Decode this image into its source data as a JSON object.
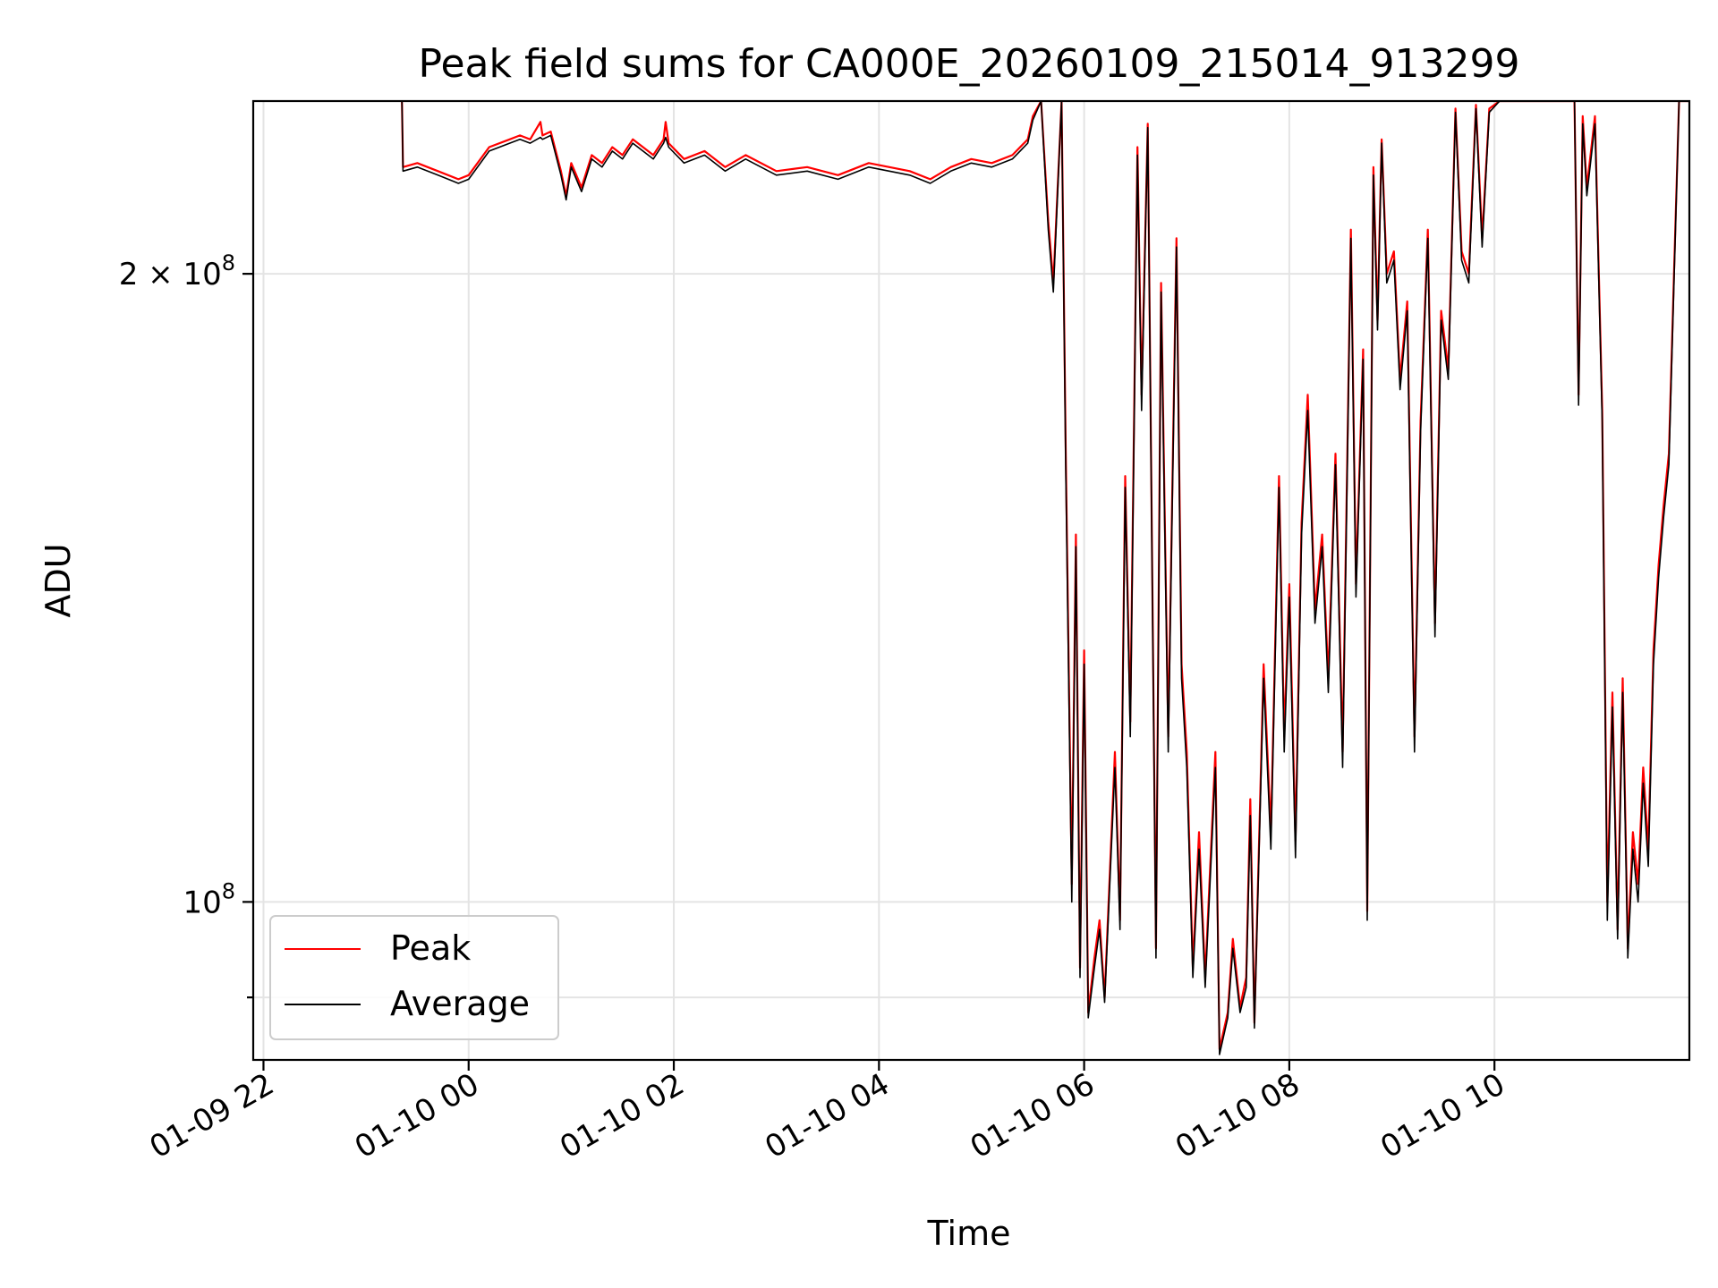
{
  "chart_data": {
    "type": "line",
    "title": "Peak field sums for CA000E_20260109_215014_913299",
    "xlabel": "Time",
    "ylabel": "ADU",
    "x_unit": "hours since 01-09 22:00",
    "xlim": [
      -0.1,
      13.9
    ],
    "y_scale": "log",
    "ylim": [
      84000000,
      242000000
    ],
    "grid": true,
    "legend_location": "lower-left",
    "x_ticks": [
      {
        "value": 0,
        "label": "01-09 22"
      },
      {
        "value": 2,
        "label": "01-10 00"
      },
      {
        "value": 4,
        "label": "01-10 02"
      },
      {
        "value": 6,
        "label": "01-10 04"
      },
      {
        "value": 8,
        "label": "01-10 06"
      },
      {
        "value": 10,
        "label": "01-10 08"
      },
      {
        "value": 12,
        "label": "01-10 10"
      }
    ],
    "y_major_ticks": [
      {
        "value": 100000000,
        "base": "10",
        "exp": "8",
        "coef": ""
      },
      {
        "value": 200000000,
        "base": "10",
        "exp": "8",
        "coef": "2 × "
      }
    ],
    "y_minor_ticks": [
      90000000
    ],
    "series": [
      {
        "name": "Peak",
        "color": "#ff0000",
        "points": [
          [
            1.35,
            242000000
          ],
          [
            1.36,
            225000000
          ],
          [
            1.5,
            226000000
          ],
          [
            1.7,
            224000000
          ],
          [
            1.9,
            222000000
          ],
          [
            2.0,
            223000000
          ],
          [
            2.2,
            230000000
          ],
          [
            2.4,
            232000000
          ],
          [
            2.5,
            233000000
          ],
          [
            2.6,
            232000000
          ],
          [
            2.7,
            236500000
          ],
          [
            2.72,
            233000000
          ],
          [
            2.8,
            234000000
          ],
          [
            2.9,
            224000000
          ],
          [
            2.95,
            218000000
          ],
          [
            3.0,
            226000000
          ],
          [
            3.1,
            220000000
          ],
          [
            3.2,
            228000000
          ],
          [
            3.3,
            226000000
          ],
          [
            3.4,
            230000000
          ],
          [
            3.5,
            228000000
          ],
          [
            3.6,
            232000000
          ],
          [
            3.7,
            230000000
          ],
          [
            3.8,
            228000000
          ],
          [
            3.9,
            232000000
          ],
          [
            3.92,
            236500000
          ],
          [
            3.95,
            231000000
          ],
          [
            4.1,
            227000000
          ],
          [
            4.3,
            229000000
          ],
          [
            4.5,
            225000000
          ],
          [
            4.7,
            228000000
          ],
          [
            5.0,
            224000000
          ],
          [
            5.3,
            225000000
          ],
          [
            5.6,
            223000000
          ],
          [
            5.9,
            226000000
          ],
          [
            6.1,
            225000000
          ],
          [
            6.3,
            224000000
          ],
          [
            6.5,
            222000000
          ],
          [
            6.7,
            225000000
          ],
          [
            6.9,
            227000000
          ],
          [
            7.1,
            226000000
          ],
          [
            7.3,
            228000000
          ],
          [
            7.45,
            232000000
          ],
          [
            7.5,
            238000000
          ],
          [
            7.58,
            242000000
          ],
          [
            7.65,
            212000000
          ],
          [
            7.7,
            198000000
          ],
          [
            7.78,
            242000000
          ],
          [
            7.82,
            165000000
          ],
          [
            7.88,
            102000000
          ],
          [
            7.92,
            150000000
          ],
          [
            7.96,
            93000000
          ],
          [
            8.0,
            132000000
          ],
          [
            8.04,
            88500000
          ],
          [
            8.1,
            94000000
          ],
          [
            8.15,
            98000000
          ],
          [
            8.2,
            90000000
          ],
          [
            8.3,
            118000000
          ],
          [
            8.35,
            98000000
          ],
          [
            8.4,
            160000000
          ],
          [
            8.45,
            122000000
          ],
          [
            8.52,
            230000000
          ],
          [
            8.56,
            175000000
          ],
          [
            8.62,
            236000000
          ],
          [
            8.7,
            95000000
          ],
          [
            8.75,
            198000000
          ],
          [
            8.82,
            120000000
          ],
          [
            8.9,
            208000000
          ],
          [
            8.95,
            130000000
          ],
          [
            9.0,
            118000000
          ],
          [
            9.06,
            93000000
          ],
          [
            9.12,
            108000000
          ],
          [
            9.18,
            92000000
          ],
          [
            9.28,
            118000000
          ],
          [
            9.32,
            85000000
          ],
          [
            9.4,
            88500000
          ],
          [
            9.45,
            96000000
          ],
          [
            9.52,
            89000000
          ],
          [
            9.58,
            92000000
          ],
          [
            9.62,
            112000000
          ],
          [
            9.66,
            87500000
          ],
          [
            9.75,
            130000000
          ],
          [
            9.82,
            108000000
          ],
          [
            9.9,
            160000000
          ],
          [
            9.95,
            120000000
          ],
          [
            10.0,
            142000000
          ],
          [
            10.06,
            107000000
          ],
          [
            10.12,
            152000000
          ],
          [
            10.18,
            175000000
          ],
          [
            10.25,
            138000000
          ],
          [
            10.32,
            150000000
          ],
          [
            10.38,
            128000000
          ],
          [
            10.45,
            164000000
          ],
          [
            10.52,
            118000000
          ],
          [
            10.6,
            210000000
          ],
          [
            10.65,
            142000000
          ],
          [
            10.72,
            184000000
          ],
          [
            10.76,
            99000000
          ],
          [
            10.82,
            225000000
          ],
          [
            10.86,
            190000000
          ],
          [
            10.9,
            232000000
          ],
          [
            10.95,
            200000000
          ],
          [
            11.02,
            205000000
          ],
          [
            11.08,
            178000000
          ],
          [
            11.15,
            194000000
          ],
          [
            11.22,
            120000000
          ],
          [
            11.28,
            170000000
          ],
          [
            11.35,
            210000000
          ],
          [
            11.42,
            136000000
          ],
          [
            11.48,
            192000000
          ],
          [
            11.55,
            180000000
          ],
          [
            11.62,
            240000000
          ],
          [
            11.68,
            205000000
          ],
          [
            11.75,
            200000000
          ],
          [
            11.82,
            241000000
          ],
          [
            11.88,
            208000000
          ],
          [
            11.95,
            240000000
          ],
          [
            12.05,
            242000000
          ],
          [
            12.2,
            242000000
          ],
          [
            12.4,
            242000000
          ],
          [
            12.6,
            242000000
          ],
          [
            12.78,
            242000000
          ],
          [
            12.82,
            175000000
          ],
          [
            12.86,
            238000000
          ],
          [
            12.9,
            220000000
          ],
          [
            12.98,
            238000000
          ],
          [
            13.05,
            172000000
          ],
          [
            13.1,
            100000000
          ],
          [
            13.15,
            126000000
          ],
          [
            13.2,
            97000000
          ],
          [
            13.25,
            128000000
          ],
          [
            13.3,
            95000000
          ],
          [
            13.35,
            108000000
          ],
          [
            13.4,
            102000000
          ],
          [
            13.45,
            116000000
          ],
          [
            13.5,
            106000000
          ],
          [
            13.55,
            132000000
          ],
          [
            13.6,
            145000000
          ],
          [
            13.65,
            155000000
          ],
          [
            13.7,
            164000000
          ],
          [
            13.75,
            200000000
          ],
          [
            13.8,
            242000000
          ],
          [
            13.9,
            242000000
          ]
        ]
      },
      {
        "name": "Average",
        "color": "#000000",
        "points": [
          [
            1.35,
            242000000
          ],
          [
            1.36,
            224000000
          ],
          [
            1.5,
            225000000
          ],
          [
            1.7,
            223000000
          ],
          [
            1.9,
            221000000
          ],
          [
            2.0,
            222000000
          ],
          [
            2.2,
            229000000
          ],
          [
            2.4,
            231000000
          ],
          [
            2.5,
            232000000
          ],
          [
            2.6,
            231000000
          ],
          [
            2.7,
            232500000
          ],
          [
            2.72,
            232000000
          ],
          [
            2.8,
            233000000
          ],
          [
            2.9,
            223000000
          ],
          [
            2.95,
            217000000
          ],
          [
            3.0,
            225000000
          ],
          [
            3.1,
            219000000
          ],
          [
            3.2,
            227000000
          ],
          [
            3.3,
            225000000
          ],
          [
            3.4,
            229000000
          ],
          [
            3.5,
            227000000
          ],
          [
            3.6,
            231000000
          ],
          [
            3.7,
            229000000
          ],
          [
            3.8,
            227000000
          ],
          [
            3.9,
            231000000
          ],
          [
            3.92,
            232500000
          ],
          [
            3.95,
            230000000
          ],
          [
            4.1,
            226000000
          ],
          [
            4.3,
            228000000
          ],
          [
            4.5,
            224000000
          ],
          [
            4.7,
            227000000
          ],
          [
            5.0,
            223000000
          ],
          [
            5.3,
            224000000
          ],
          [
            5.6,
            222000000
          ],
          [
            5.9,
            225000000
          ],
          [
            6.1,
            224000000
          ],
          [
            6.3,
            223000000
          ],
          [
            6.5,
            221000000
          ],
          [
            6.7,
            224000000
          ],
          [
            6.9,
            226000000
          ],
          [
            7.1,
            225000000
          ],
          [
            7.3,
            227000000
          ],
          [
            7.45,
            231000000
          ],
          [
            7.5,
            237000000
          ],
          [
            7.58,
            242000000
          ],
          [
            7.65,
            210000000
          ],
          [
            7.7,
            196000000
          ],
          [
            7.78,
            242000000
          ],
          [
            7.82,
            162000000
          ],
          [
            7.88,
            100000000
          ],
          [
            7.92,
            148000000
          ],
          [
            7.96,
            92000000
          ],
          [
            8.0,
            130000000
          ],
          [
            8.04,
            88000000
          ],
          [
            8.1,
            93000000
          ],
          [
            8.15,
            97000000
          ],
          [
            8.2,
            89500000
          ],
          [
            8.3,
            116000000
          ],
          [
            8.35,
            97000000
          ],
          [
            8.4,
            158000000
          ],
          [
            8.45,
            120000000
          ],
          [
            8.52,
            228000000
          ],
          [
            8.56,
            172000000
          ],
          [
            8.62,
            235000000
          ],
          [
            8.7,
            94000000
          ],
          [
            8.75,
            196000000
          ],
          [
            8.82,
            118000000
          ],
          [
            8.9,
            206000000
          ],
          [
            8.95,
            128000000
          ],
          [
            9.0,
            116000000
          ],
          [
            9.06,
            92000000
          ],
          [
            9.12,
            106000000
          ],
          [
            9.18,
            91000000
          ],
          [
            9.28,
            116000000
          ],
          [
            9.32,
            84500000
          ],
          [
            9.4,
            88000000
          ],
          [
            9.45,
            95000000
          ],
          [
            9.52,
            88500000
          ],
          [
            9.58,
            91000000
          ],
          [
            9.62,
            110000000
          ],
          [
            9.66,
            87000000
          ],
          [
            9.75,
            128000000
          ],
          [
            9.82,
            106000000
          ],
          [
            9.9,
            158000000
          ],
          [
            9.95,
            118000000
          ],
          [
            10.0,
            140000000
          ],
          [
            10.06,
            105000000
          ],
          [
            10.12,
            150000000
          ],
          [
            10.18,
            172000000
          ],
          [
            10.25,
            136000000
          ],
          [
            10.32,
            148000000
          ],
          [
            10.38,
            126000000
          ],
          [
            10.45,
            162000000
          ],
          [
            10.52,
            116000000
          ],
          [
            10.6,
            208000000
          ],
          [
            10.65,
            140000000
          ],
          [
            10.72,
            182000000
          ],
          [
            10.76,
            98000000
          ],
          [
            10.82,
            223000000
          ],
          [
            10.86,
            188000000
          ],
          [
            10.9,
            231000000
          ],
          [
            10.95,
            198000000
          ],
          [
            11.02,
            203000000
          ],
          [
            11.08,
            176000000
          ],
          [
            11.15,
            192000000
          ],
          [
            11.22,
            118000000
          ],
          [
            11.28,
            168000000
          ],
          [
            11.35,
            208000000
          ],
          [
            11.42,
            134000000
          ],
          [
            11.48,
            190000000
          ],
          [
            11.55,
            178000000
          ],
          [
            11.62,
            239000000
          ],
          [
            11.68,
            203000000
          ],
          [
            11.75,
            198000000
          ],
          [
            11.82,
            240000000
          ],
          [
            11.88,
            206000000
          ],
          [
            11.95,
            239000000
          ],
          [
            12.05,
            242000000
          ],
          [
            12.2,
            242000000
          ],
          [
            12.4,
            242000000
          ],
          [
            12.6,
            242000000
          ],
          [
            12.78,
            242000000
          ],
          [
            12.82,
            173000000
          ],
          [
            12.86,
            236000000
          ],
          [
            12.9,
            218000000
          ],
          [
            12.98,
            236000000
          ],
          [
            13.05,
            170000000
          ],
          [
            13.1,
            98000000
          ],
          [
            13.15,
            124000000
          ],
          [
            13.2,
            96000000
          ],
          [
            13.25,
            126000000
          ],
          [
            13.3,
            94000000
          ],
          [
            13.35,
            106000000
          ],
          [
            13.4,
            100000000
          ],
          [
            13.45,
            114000000
          ],
          [
            13.5,
            104000000
          ],
          [
            13.55,
            130000000
          ],
          [
            13.6,
            143000000
          ],
          [
            13.65,
            153000000
          ],
          [
            13.7,
            162000000
          ],
          [
            13.75,
            198000000
          ],
          [
            13.8,
            242000000
          ],
          [
            13.9,
            242000000
          ]
        ]
      }
    ]
  }
}
